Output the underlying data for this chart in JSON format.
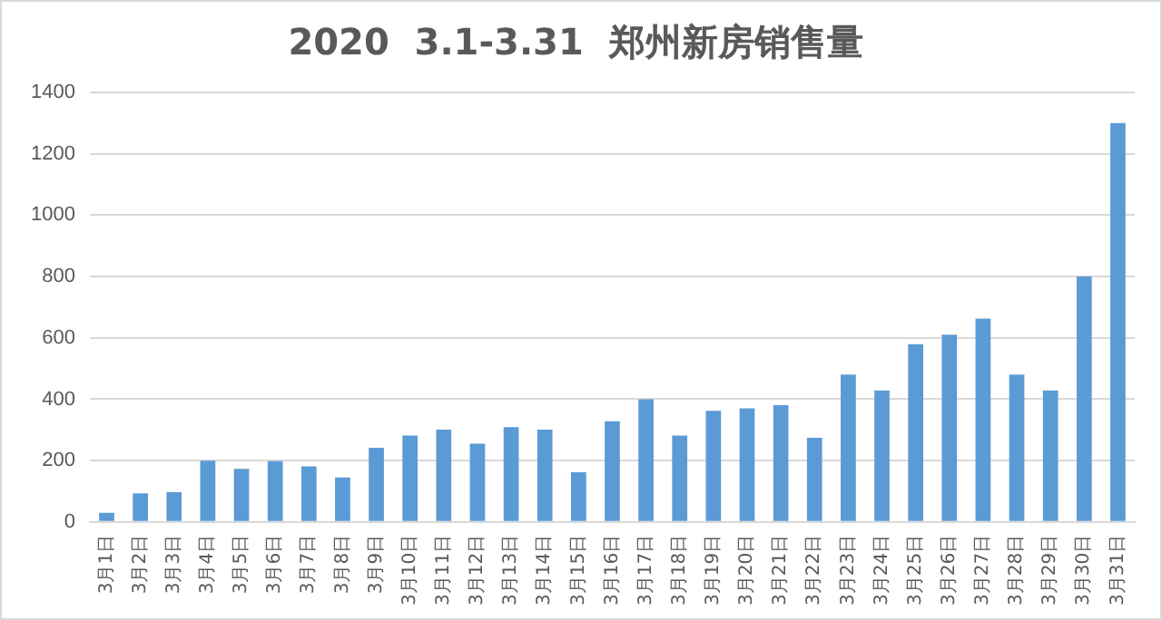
{
  "chart_data": {
    "type": "bar",
    "title": "2020  3.1-3.31  郑州新房销售量",
    "categories": [
      "3月1日",
      "3月2日",
      "3月3日",
      "3月4日",
      "3月5日",
      "3月6日",
      "3月7日",
      "3月8日",
      "3月9日",
      "3月10日",
      "3月11日",
      "3月12日",
      "3月13日",
      "3月14日",
      "3月15日",
      "3月16日",
      "3月17日",
      "3月18日",
      "3月19日",
      "3月20日",
      "3月21日",
      "3月22日",
      "3月23日",
      "3月24日",
      "3月25日",
      "3月26日",
      "3月27日",
      "3月28日",
      "3月29日",
      "3月30日",
      "3月31日"
    ],
    "values": [
      30,
      93,
      97,
      200,
      173,
      198,
      181,
      145,
      242,
      282,
      301,
      255,
      309,
      301,
      162,
      328,
      400,
      282,
      362,
      370,
      381,
      274,
      480,
      429,
      579,
      610,
      663,
      480,
      429,
      800,
      1300
    ],
    "color": "#5b9bd5",
    "ylim": [
      0,
      1400
    ],
    "yticks": [
      0,
      200,
      400,
      600,
      800,
      1000,
      1200,
      1400
    ],
    "grid": "y"
  }
}
